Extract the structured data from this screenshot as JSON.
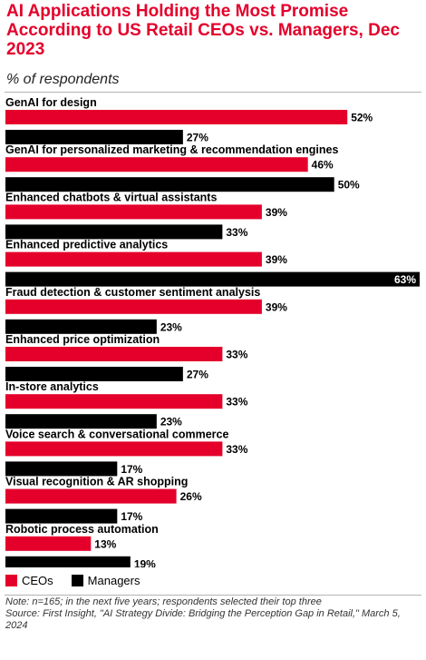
{
  "title": "AI Applications Holding the Most Promise According to US Retail CEOs vs. Managers, Dec 2023",
  "subtitle": "% of respondents",
  "colors": {
    "ceos": "#e4002b",
    "managers": "#000000"
  },
  "chart_data": {
    "type": "bar",
    "orientation": "horizontal",
    "categories": [
      "GenAI for design",
      "GenAI for personalized marketing & recommendation engines",
      "Enhanced chatbots & virtual assistants",
      "Enhanced predictive analytics",
      "Fraud detection & customer sentiment analysis",
      "Enhanced price optimization",
      "In-store analytics",
      "Voice search & conversational commerce",
      "Visual recognition & AR shopping",
      "Robotic process automation"
    ],
    "series": [
      {
        "name": "CEOs",
        "values": [
          52,
          46,
          39,
          39,
          39,
          33,
          33,
          33,
          26,
          13
        ]
      },
      {
        "name": "Managers",
        "values": [
          27,
          50,
          33,
          63,
          23,
          27,
          23,
          17,
          17,
          19
        ]
      }
    ],
    "value_suffix": "%",
    "xlim": [
      0,
      63
    ],
    "grid": false,
    "legend_position": "bottom-left"
  },
  "legend": {
    "ceos": "CEOs",
    "managers": "Managers"
  },
  "footer": {
    "note": "Note: n=165; in the next five years; respondents selected their top three",
    "source": "Source: First Insight, \"AI Strategy Divide: Bridging the Perception Gap in Retail,\" March 5, 2024"
  }
}
